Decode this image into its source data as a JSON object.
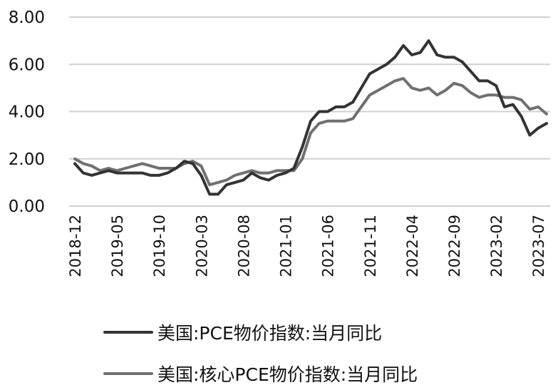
{
  "chart_data": {
    "type": "line",
    "title": "",
    "xlabel": "",
    "ylabel": "",
    "ylim": [
      0,
      8
    ],
    "yticks": [
      "0.00",
      "2.00",
      "4.00",
      "6.00",
      "8.00"
    ],
    "grid": "horizontal",
    "legend_position": "bottom",
    "x_tick_labels": [
      "2018-12",
      "2019-05",
      "2019-10",
      "2020-03",
      "2020-08",
      "2021-01",
      "2021-06",
      "2021-11",
      "2022-04",
      "2022-09",
      "2023-02",
      "2023-07"
    ],
    "x": [
      "2018-12",
      "2019-01",
      "2019-02",
      "2019-03",
      "2019-04",
      "2019-05",
      "2019-06",
      "2019-07",
      "2019-08",
      "2019-09",
      "2019-10",
      "2019-11",
      "2019-12",
      "2020-01",
      "2020-02",
      "2020-03",
      "2020-04",
      "2020-05",
      "2020-06",
      "2020-07",
      "2020-08",
      "2020-09",
      "2020-10",
      "2020-11",
      "2020-12",
      "2021-01",
      "2021-02",
      "2021-03",
      "2021-04",
      "2021-05",
      "2021-06",
      "2021-07",
      "2021-08",
      "2021-09",
      "2021-10",
      "2021-11",
      "2021-12",
      "2022-01",
      "2022-02",
      "2022-03",
      "2022-04",
      "2022-05",
      "2022-06",
      "2022-07",
      "2022-08",
      "2022-09",
      "2022-10",
      "2022-11",
      "2022-12",
      "2023-01",
      "2023-02",
      "2023-03",
      "2023-04",
      "2023-05",
      "2023-06",
      "2023-07",
      "2023-08"
    ],
    "series": [
      {
        "name": "美国:PCE物价指数:当月同比",
        "color": "#333333",
        "values": [
          1.8,
          1.4,
          1.3,
          1.4,
          1.5,
          1.4,
          1.4,
          1.4,
          1.4,
          1.3,
          1.3,
          1.4,
          1.6,
          1.9,
          1.8,
          1.3,
          0.5,
          0.5,
          0.9,
          1.0,
          1.1,
          1.4,
          1.2,
          1.1,
          1.3,
          1.4,
          1.6,
          2.5,
          3.6,
          4.0,
          4.0,
          4.2,
          4.2,
          4.4,
          5.0,
          5.6,
          5.8,
          6.0,
          6.3,
          6.8,
          6.4,
          6.5,
          7.0,
          6.4,
          6.3,
          6.3,
          6.1,
          5.7,
          5.3,
          5.3,
          5.1,
          4.2,
          4.3,
          3.8,
          3.0,
          3.3,
          3.5
        ]
      },
      {
        "name": "美国:核心PCE物价指数:当月同比",
        "color": "#707070",
        "values": [
          2.0,
          1.8,
          1.7,
          1.5,
          1.6,
          1.5,
          1.6,
          1.7,
          1.8,
          1.7,
          1.6,
          1.6,
          1.6,
          1.8,
          1.9,
          1.7,
          0.9,
          1.0,
          1.1,
          1.3,
          1.4,
          1.5,
          1.4,
          1.4,
          1.5,
          1.5,
          1.5,
          2.0,
          3.1,
          3.5,
          3.6,
          3.6,
          3.6,
          3.7,
          4.2,
          4.7,
          4.9,
          5.1,
          5.3,
          5.4,
          5.0,
          4.9,
          5.0,
          4.7,
          4.9,
          5.2,
          5.1,
          4.8,
          4.6,
          4.7,
          4.7,
          4.6,
          4.6,
          4.5,
          4.1,
          4.2,
          3.9
        ]
      }
    ]
  },
  "legend": {
    "items": [
      {
        "label": "美国:PCE物价指数:当月同比",
        "color": "#333333"
      },
      {
        "label": "美国:核心PCE物价指数:当月同比",
        "color": "#707070"
      }
    ]
  },
  "style": {
    "grid_color": "#d0d0d0"
  }
}
